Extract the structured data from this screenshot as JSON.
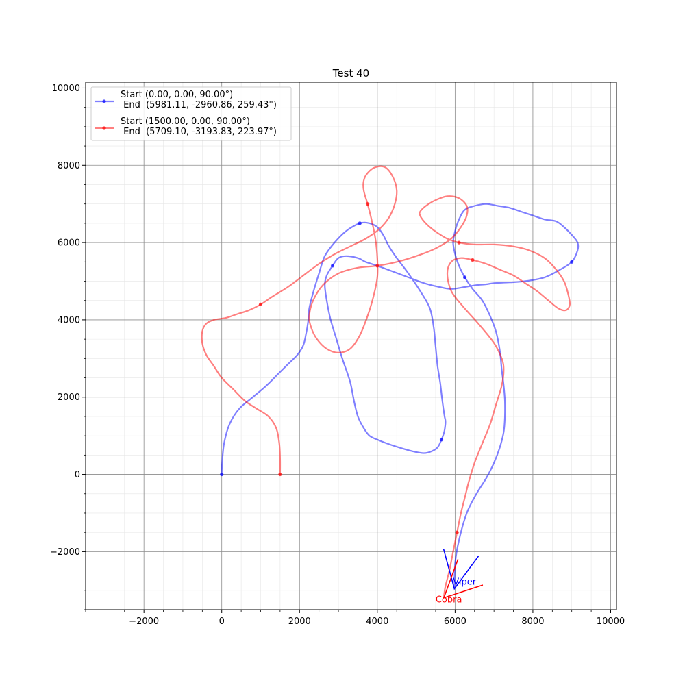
{
  "chart_data": {
    "type": "line",
    "title": "Test 40",
    "xlabel": "",
    "ylabel": "",
    "xlim": [
      -3500,
      10150
    ],
    "ylim": [
      -3500,
      10150
    ],
    "xticks": [
      -2000,
      0,
      2000,
      4000,
      6000,
      8000,
      10000
    ],
    "yticks": [
      -2000,
      0,
      2000,
      4000,
      6000,
      8000,
      10000
    ],
    "xtick_labels": [
      "−2000",
      "0",
      "2000",
      "4000",
      "6000",
      "8000",
      "10000"
    ],
    "ytick_labels": [
      "−2000",
      "0",
      "2000",
      "4000",
      "6000",
      "8000",
      "10000"
    ],
    "grid": true,
    "minor_grid": true,
    "legend_position": "upper-left",
    "series": [
      {
        "name_line1": "Start (0.00, 0.00, 90.00°)",
        "name_line2": " End  (5981.11, -2960.86, 259.43°)",
        "color": "#0000ff",
        "x": [
          0,
          10,
          60,
          200,
          450,
          800,
          1150,
          1450,
          1700,
          1950,
          2100,
          2170,
          2220,
          2250,
          2350,
          2500,
          2650,
          2900,
          3200,
          3550,
          3800,
          4000,
          4150,
          4300,
          4500,
          4800,
          5100,
          5350,
          5450,
          5500,
          5550,
          5620,
          5660,
          5700,
          5730,
          5750,
          5750,
          5720,
          5650,
          5550,
          5400,
          5200,
          4900,
          4550,
          4250,
          4000,
          3800,
          3650,
          3500,
          3400,
          3300,
          3100,
          2950,
          2800,
          2700,
          2650,
          2700,
          2850,
          3000,
          3200,
          3500,
          3700,
          4000,
          4400,
          4800,
          5200,
          5600,
          5900,
          6250,
          6550,
          6800,
          7000,
          7400,
          7800,
          8300,
          8700,
          9000,
          9150,
          9150,
          9000,
          8800,
          8600,
          8300,
          8000,
          7700,
          7400,
          7100,
          6800,
          6500,
          6250,
          6100,
          6000,
          5950,
          6000,
          6100,
          6250,
          6450,
          6700,
          6900,
          7050,
          7150,
          7200,
          7250,
          7280,
          7280,
          7250,
          7150,
          7000,
          6800,
          6550,
          6300,
          6100,
          6000,
          5981
        ],
        "y": [
          0,
          300,
          800,
          1300,
          1700,
          2000,
          2300,
          2600,
          2850,
          3100,
          3350,
          3650,
          3950,
          4300,
          4700,
          5200,
          5650,
          6000,
          6300,
          6500,
          6500,
          6400,
          6200,
          5900,
          5600,
          5200,
          4750,
          4300,
          3800,
          3300,
          2800,
          2350,
          2000,
          1700,
          1500,
          1400,
          1300,
          1100,
          900,
          700,
          600,
          550,
          600,
          700,
          800,
          900,
          1000,
          1200,
          1500,
          1900,
          2400,
          3000,
          3500,
          4000,
          4500,
          4900,
          5150,
          5400,
          5600,
          5650,
          5600,
          5500,
          5400,
          5250,
          5100,
          4950,
          4850,
          4800,
          4850,
          4900,
          4920,
          4950,
          4970,
          5000,
          5100,
          5300,
          5500,
          5800,
          6000,
          6200,
          6400,
          6550,
          6600,
          6700,
          6800,
          6900,
          6950,
          7000,
          6950,
          6850,
          6600,
          6300,
          6000,
          5700,
          5400,
          5100,
          4800,
          4500,
          4100,
          3700,
          3200,
          2700,
          2300,
          1900,
          1500,
          1100,
          700,
          300,
          -100,
          -500,
          -1000,
          -1700,
          -2300,
          -2960
        ]
      },
      {
        "name_line1": "Start (1500.00, 0.00, 90.00°)",
        "name_line2": " End  (5709.10, -3193.83, 223.97°)",
        "color": "#ff0000",
        "x": [
          1500,
          1500,
          1480,
          1400,
          1200,
          900,
          600,
          300,
          0,
          -200,
          -400,
          -500,
          -500,
          -400,
          -200,
          100,
          400,
          700,
          1000,
          1300,
          1700,
          2100,
          2500,
          2900,
          3300,
          3700,
          4050,
          4300,
          4450,
          4500,
          4400,
          4200,
          3950,
          3750,
          3650,
          3650,
          3750,
          3850,
          3950,
          4000,
          4000,
          3900,
          3750,
          3550,
          3300,
          3000,
          2700,
          2450,
          2300,
          2250,
          2350,
          2600,
          3000,
          3500,
          4000,
          4500,
          5000,
          5500,
          5900,
          6150,
          6300,
          6300,
          6100,
          5800,
          5500,
          5250,
          5100,
          5100,
          5200,
          5350,
          5550,
          5800,
          6100,
          6500,
          7000,
          7500,
          7900,
          8300,
          8600,
          8800,
          8900,
          8950,
          8850,
          8650,
          8400,
          8100,
          7800,
          7500,
          7150,
          6800,
          6450,
          6150,
          5900,
          5800,
          5900,
          6200,
          6600,
          7000,
          7200,
          7250,
          7200,
          7050,
          6900,
          6700,
          6500,
          6350,
          6250,
          6150,
          6050,
          5950,
          5850,
          5750,
          5709
        ],
        "y": [
          0,
          400,
          800,
          1200,
          1500,
          1700,
          1900,
          2200,
          2500,
          2800,
          3100,
          3400,
          3700,
          3900,
          4000,
          4050,
          4150,
          4250,
          4400,
          4600,
          4850,
          5150,
          5450,
          5700,
          5900,
          6100,
          6350,
          6650,
          7000,
          7350,
          7700,
          7950,
          7950,
          7800,
          7600,
          7350,
          7000,
          6600,
          6100,
          5600,
          5100,
          4600,
          4100,
          3600,
          3250,
          3150,
          3250,
          3500,
          3800,
          4100,
          4500,
          4900,
          5200,
          5350,
          5400,
          5500,
          5650,
          5850,
          6100,
          6400,
          6700,
          6950,
          7150,
          7200,
          7100,
          6950,
          6800,
          6700,
          6550,
          6400,
          6250,
          6100,
          6000,
          5950,
          5950,
          5900,
          5800,
          5600,
          5300,
          5000,
          4700,
          4400,
          4250,
          4300,
          4500,
          4750,
          4950,
          5150,
          5300,
          5450,
          5550,
          5600,
          5500,
          5200,
          4750,
          4350,
          3900,
          3400,
          3000,
          2700,
          2300,
          1800,
          1300,
          800,
          300,
          -200,
          -600,
          -1000,
          -1500,
          -2000,
          -2500,
          -2900,
          -3193
        ]
      }
    ],
    "annotations": [
      {
        "label": "Viper",
        "color": "#0000ff",
        "x": 5981,
        "y": -2961,
        "heading_deg": 259.43
      },
      {
        "label": "Cobra",
        "color": "#ff0000",
        "x": 5709,
        "y": -3194,
        "heading_deg": 223.97
      }
    ]
  }
}
